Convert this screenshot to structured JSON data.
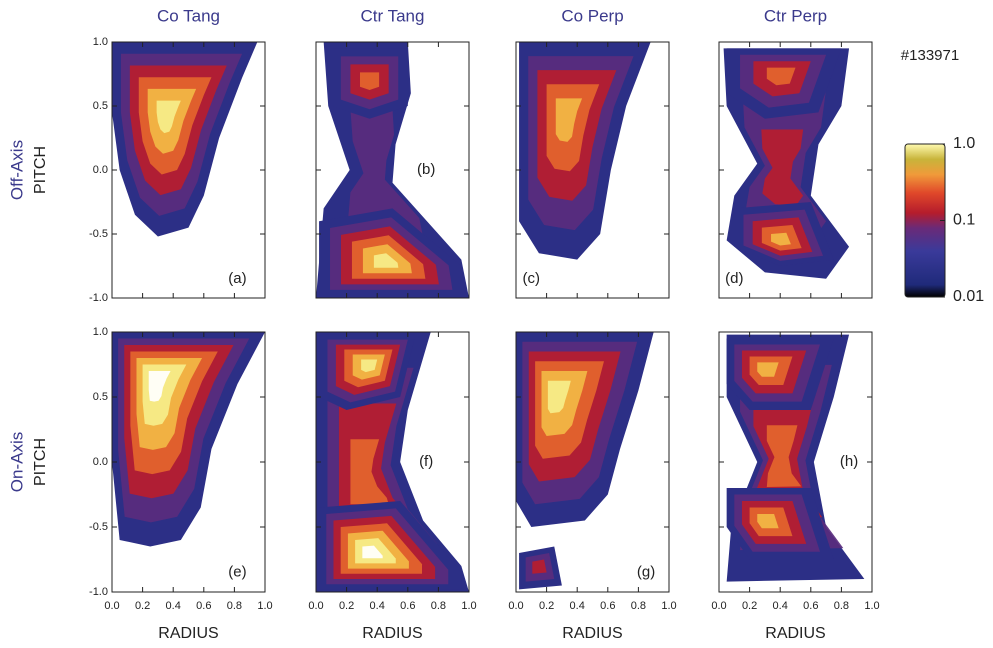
{
  "chart_data": {
    "type": "contour",
    "shot": "#133971",
    "column_titles": [
      "Co Tang",
      "Ctr Tang",
      "Co Perp",
      "Ctr Perp"
    ],
    "row_labels": [
      "Off-Axis",
      "On-Axis"
    ],
    "y_label": "PITCH",
    "x_label": "RADIUS",
    "panel_labels": [
      "(a)",
      "(b)",
      "(c)",
      "(d)",
      "(e)",
      "(f)",
      "(g)",
      "(h)"
    ],
    "xlim": [
      0,
      1
    ],
    "ylim": [
      -1,
      1
    ],
    "xticks": [
      {
        "value": 0,
        "label": "0.0"
      },
      0.2,
      0.4,
      0.6,
      0.8,
      {
        "value": 1,
        "label": "1.0"
      }
    ],
    "yticks": [
      {
        "value": -1,
        "label": "-1.0"
      },
      -0.5,
      {
        "value": 0,
        "label": "0.0"
      },
      0.5,
      {
        "value": 1,
        "label": "1.0"
      }
    ],
    "colorbar": {
      "scale": "log",
      "lim": [
        0.01,
        1
      ],
      "ticks": [
        {
          "value": 1,
          "label": "1.0"
        },
        0.1,
        0.01
      ]
    }
  }
}
